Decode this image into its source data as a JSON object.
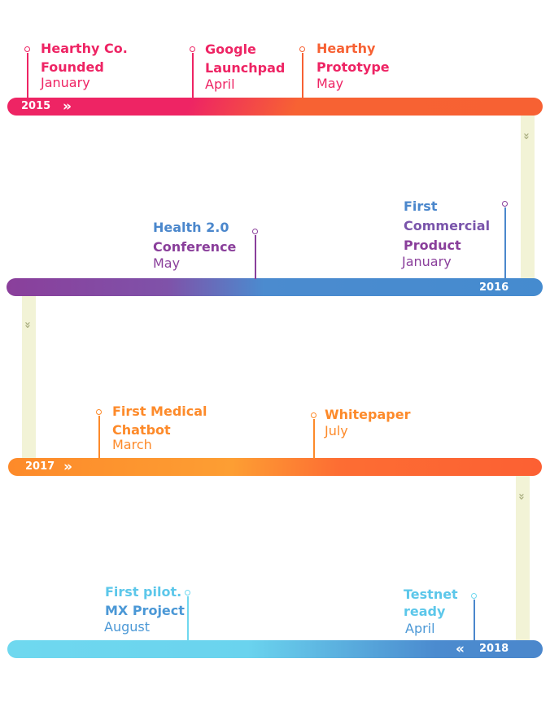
{
  "timeline": {
    "rows": [
      {
        "year": "2015",
        "direction_icon": "double-chevron-right-icon",
        "events": [
          {
            "title_lines": [
              "Hearthy Co.",
              "Founded"
            ],
            "month": "January",
            "color": "#ee2464"
          },
          {
            "title_lines": [
              "Google",
              "Launchpad"
            ],
            "month": "April",
            "color": "#ee2464"
          },
          {
            "title_lines": [
              "Hearthy",
              "Prototype"
            ],
            "month": "May",
            "color": "#f76133"
          }
        ]
      },
      {
        "year": "2016",
        "events": [
          {
            "title_lines": [
              "Health 2.0",
              "Conference"
            ],
            "month": "May",
            "color": "#8a3f9b"
          },
          {
            "title_lines": [
              "First",
              "Commercial",
              "Product"
            ],
            "month": "January",
            "color": "#4b87cc"
          }
        ]
      },
      {
        "year": "2017",
        "direction_icon": "double-chevron-right-icon",
        "events": [
          {
            "title_lines": [
              "First Medical",
              "Chatbot"
            ],
            "month": "March",
            "color": "#fd8a2a"
          },
          {
            "title_lines": [
              "Whitepaper"
            ],
            "month": "July",
            "color": "#fd8a2a"
          }
        ]
      },
      {
        "year": "2018",
        "direction_icon": "double-chevron-left-icon",
        "events": [
          {
            "title_lines": [
              "First pilot.",
              "MX Project"
            ],
            "month": "August",
            "color": "#6fd8ef"
          },
          {
            "title_lines": [
              "Testnet",
              "ready"
            ],
            "month": "April",
            "color": "#4b87cc"
          }
        ]
      }
    ],
    "connector_icon": "double-chevron-down-icon",
    "colors": {
      "connector": "#f2f3d6",
      "chevron": "#a9ad7f",
      "month_gray": "#777777"
    }
  }
}
